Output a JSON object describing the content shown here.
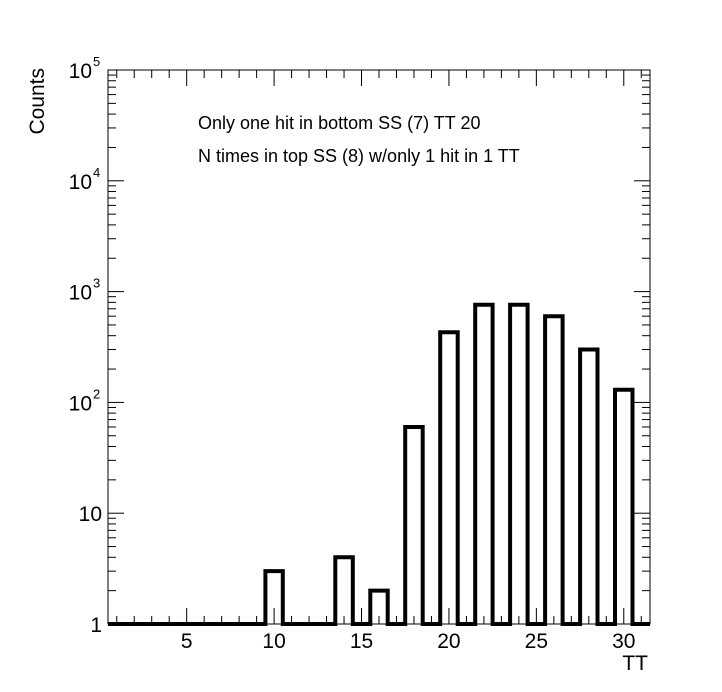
{
  "chart_data": {
    "type": "bar",
    "title": "",
    "xlabel": "TT",
    "ylabel": "Counts",
    "yscale": "log",
    "xlim": [
      0.5,
      31.5
    ],
    "ylim": [
      1,
      100000
    ],
    "grid": false,
    "legend": "none",
    "bar_color": "#000000",
    "bin_width": 1,
    "bins": [
      {
        "x": 1,
        "value": 0
      },
      {
        "x": 2,
        "value": 0
      },
      {
        "x": 3,
        "value": 0
      },
      {
        "x": 4,
        "value": 0
      },
      {
        "x": 5,
        "value": 0
      },
      {
        "x": 6,
        "value": 0
      },
      {
        "x": 7,
        "value": 0
      },
      {
        "x": 8,
        "value": 0
      },
      {
        "x": 9,
        "value": 0
      },
      {
        "x": 10,
        "value": 3
      },
      {
        "x": 11,
        "value": 0
      },
      {
        "x": 12,
        "value": 0
      },
      {
        "x": 13,
        "value": 0
      },
      {
        "x": 14,
        "value": 4
      },
      {
        "x": 15,
        "value": 0
      },
      {
        "x": 16,
        "value": 2
      },
      {
        "x": 17,
        "value": 0
      },
      {
        "x": 18,
        "value": 60
      },
      {
        "x": 19,
        "value": 0
      },
      {
        "x": 20,
        "value": 430
      },
      {
        "x": 21,
        "value": 0
      },
      {
        "x": 22,
        "value": 760
      },
      {
        "x": 23,
        "value": 0
      },
      {
        "x": 24,
        "value": 760
      },
      {
        "x": 25,
        "value": 0
      },
      {
        "x": 26,
        "value": 600
      },
      {
        "x": 27,
        "value": 0
      },
      {
        "x": 28,
        "value": 300
      },
      {
        "x": 29,
        "value": 0
      },
      {
        "x": 30,
        "value": 130
      },
      {
        "x": 31,
        "value": 0
      }
    ],
    "x_ticks": [
      5,
      10,
      15,
      20,
      25,
      30
    ],
    "x_tick_labels": [
      "5",
      "10",
      "15",
      "20",
      "25",
      "30"
    ],
    "y_ticks": [
      {
        "value": 1,
        "base": "1",
        "exp": ""
      },
      {
        "value": 10,
        "base": "10",
        "exp": ""
      },
      {
        "value": 100,
        "base": "10",
        "exp": "2"
      },
      {
        "value": 1000,
        "base": "10",
        "exp": "3"
      },
      {
        "value": 10000,
        "base": "10",
        "exp": "4"
      },
      {
        "value": 100000,
        "base": "10",
        "exp": "5"
      }
    ],
    "annotations": [
      "Only one hit in bottom SS (7) TT 20",
      "N times in top SS (8) w/only 1 hit in 1 TT"
    ]
  }
}
